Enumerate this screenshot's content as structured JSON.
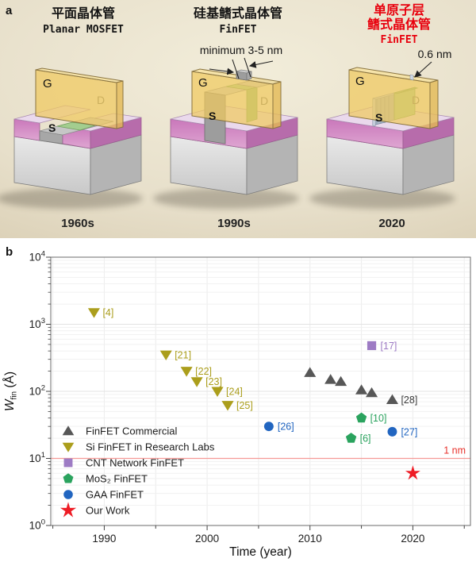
{
  "figure": {
    "panel_a_label": "a",
    "panel_b_label": "b"
  },
  "panel_a": {
    "devices": [
      {
        "title_cn": "平面晶体管",
        "title_en": "Planar MOSFET",
        "era": "1960s",
        "gate_label": "G",
        "source_label": "S",
        "drain_label": "D"
      },
      {
        "title_cn": "硅基鳍式晶体管",
        "title_en": "FinFET",
        "era": "1990s",
        "annotation": "minimum 3-5 nm",
        "gate_label": "G",
        "source_label": "S",
        "drain_label": "D"
      },
      {
        "title_cn_line1": "单原子层",
        "title_cn_line2": "鳍式晶体管",
        "title_en": "FinFET",
        "era": "2020",
        "annotation": "0.6 nm",
        "highlight_color": "#e8000d",
        "gate_label": "G",
        "source_label": "S",
        "drain_label": "D"
      }
    ]
  },
  "panel_b": {
    "label": "b"
  },
  "chart_data": {
    "type": "scatter",
    "title": "",
    "xlabel": "Time (year)",
    "ylabel": "W_fin (Å)",
    "x_scale": "linear",
    "y_scale": "log",
    "xlim": [
      1984.8,
      2025.6
    ],
    "ylim": [
      1,
      10000
    ],
    "x_ticks": [
      1990,
      2000,
      2010,
      2020
    ],
    "x_minor_ticks": [
      1985,
      1995,
      2005,
      2015,
      2025
    ],
    "y_tick_exponents": [
      0,
      1,
      2,
      3,
      4
    ],
    "grid": true,
    "legend_position": "lower-left",
    "reference_line": {
      "y": 10,
      "label": "1 nm",
      "line_color": "#f59a96",
      "label_color": "#e8322c"
    },
    "series": [
      {
        "name": "FinFET Commercial",
        "marker": "triangle-up",
        "color": "#575757",
        "label_color": "#3c3c3c",
        "points": [
          {
            "x": 2010,
            "y": 190,
            "label": ""
          },
          {
            "x": 2012,
            "y": 150,
            "label": ""
          },
          {
            "x": 2013,
            "y": 140,
            "label": ""
          },
          {
            "x": 2015,
            "y": 105,
            "label": ""
          },
          {
            "x": 2016,
            "y": 95,
            "label": ""
          },
          {
            "x": 2018,
            "y": 75,
            "label": "[28]"
          }
        ]
      },
      {
        "name": "Si FinFET in Research Labs",
        "marker": "triangle-down",
        "color": "#ab9e1c",
        "label_color": "#ab9e1c",
        "points": [
          {
            "x": 1989,
            "y": 1500,
            "label": "[4]"
          },
          {
            "x": 1996,
            "y": 350,
            "label": "[21]"
          },
          {
            "x": 1998,
            "y": 200,
            "label": "[22]"
          },
          {
            "x": 1999,
            "y": 140,
            "label": "[23]"
          },
          {
            "x": 2001,
            "y": 100,
            "label": "[24]"
          },
          {
            "x": 2002,
            "y": 62,
            "label": "[25]"
          }
        ]
      },
      {
        "name": "CNT Network FinFET",
        "marker": "square",
        "color": "#9d7bc4",
        "label_color": "#9d7bc4",
        "points": [
          {
            "x": 2016,
            "y": 480,
            "label": "[17]"
          }
        ]
      },
      {
        "name": "MoS₂ FinFET",
        "marker": "pentagon",
        "color": "#2aa35e",
        "label_color": "#2aa35e",
        "points": [
          {
            "x": 2015,
            "y": 40,
            "label": "[10]"
          },
          {
            "x": 2014,
            "y": 20,
            "label": "[6]"
          }
        ]
      },
      {
        "name": "GAA FinFET",
        "marker": "circle",
        "color": "#2165c0",
        "label_color": "#2165c0",
        "points": [
          {
            "x": 2006,
            "y": 30,
            "label": "[26]"
          },
          {
            "x": 2018,
            "y": 25,
            "label": "[27]"
          }
        ]
      },
      {
        "name": "Our Work",
        "marker": "star",
        "color": "#ee1c25",
        "label_color": "#ee1c25",
        "points": [
          {
            "x": 2020,
            "y": 6,
            "label": ""
          }
        ]
      }
    ]
  }
}
